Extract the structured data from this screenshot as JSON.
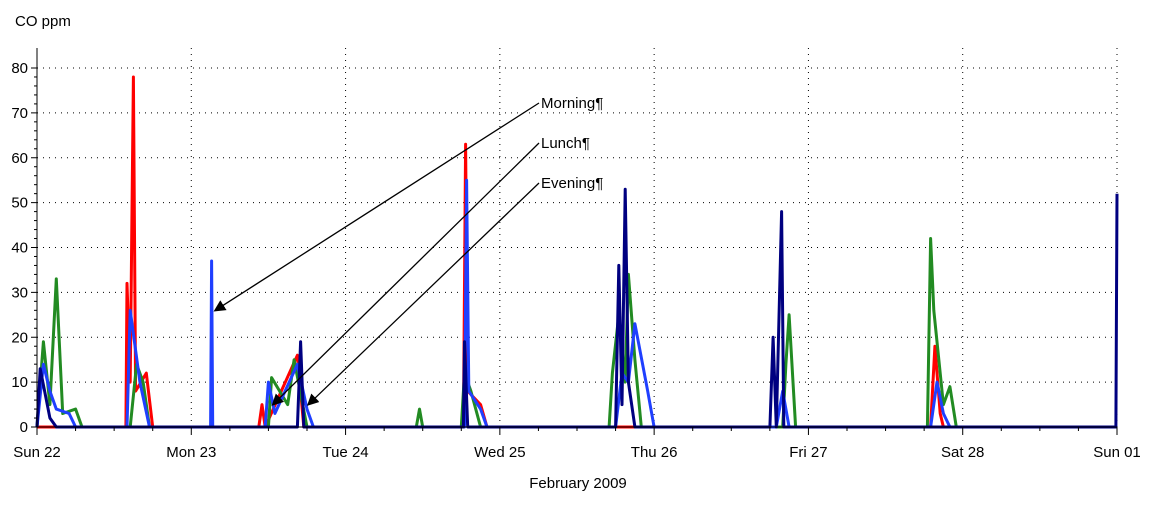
{
  "chart_data": {
    "type": "line",
    "title": "",
    "ylabel": "CO ppm",
    "xlabel": "February 2009",
    "ylim": [
      0,
      80
    ],
    "y_ticks": [
      0,
      10,
      20,
      30,
      40,
      50,
      60,
      70,
      80
    ],
    "x_range": [
      "2009-02-22T00:00",
      "2009-03-01T00:00"
    ],
    "x_ticks": [
      {
        "date": "2009-02-22T00:00",
        "label": "Sun 22"
      },
      {
        "date": "2009-02-23T00:00",
        "label": "Mon 23"
      },
      {
        "date": "2009-02-24T00:00",
        "label": "Tue 24"
      },
      {
        "date": "2009-02-25T00:00",
        "label": "Wed 25"
      },
      {
        "date": "2009-02-26T00:00",
        "label": "Thu 26"
      },
      {
        "date": "2009-02-27T00:00",
        "label": "Fri 27"
      },
      {
        "date": "2009-02-28T00:00",
        "label": "Sat 28"
      },
      {
        "date": "2009-03-01T00:00",
        "label": "Sun 01"
      }
    ],
    "grid": true,
    "series": [
      {
        "color": "#ff0000",
        "points": [
          [
            "2009-02-22T00:00",
            0
          ],
          [
            "2009-02-22T13:50",
            0
          ],
          [
            "2009-02-22T14:00",
            32
          ],
          [
            "2009-02-22T14:30",
            10
          ],
          [
            "2009-02-22T15:00",
            78
          ],
          [
            "2009-02-22T15:20",
            8
          ],
          [
            "2009-02-22T17:00",
            12
          ],
          [
            "2009-02-22T18:00",
            0
          ],
          [
            "2009-02-23T10:30",
            0
          ],
          [
            "2009-02-23T11:00",
            5
          ],
          [
            "2009-02-23T11:30",
            0
          ],
          [
            "2009-02-23T16:30",
            16
          ],
          [
            "2009-02-23T17:30",
            0
          ],
          [
            "2009-02-24T18:20",
            0
          ],
          [
            "2009-02-24T18:40",
            63
          ],
          [
            "2009-02-24T19:00",
            8
          ],
          [
            "2009-02-24T21:00",
            5
          ],
          [
            "2009-02-24T22:00",
            0
          ],
          [
            "2009-02-27T19:00",
            0
          ],
          [
            "2009-02-27T19:40",
            18
          ],
          [
            "2009-02-27T20:30",
            3
          ],
          [
            "2009-02-27T21:00",
            0
          ],
          [
            "2009-03-01T00:00",
            0
          ]
        ]
      },
      {
        "color": "#228b22",
        "points": [
          [
            "2009-02-22T00:00",
            0
          ],
          [
            "2009-02-22T01:00",
            19
          ],
          [
            "2009-02-22T02:00",
            5
          ],
          [
            "2009-02-22T03:00",
            33
          ],
          [
            "2009-02-22T04:00",
            3
          ],
          [
            "2009-02-22T06:00",
            4
          ],
          [
            "2009-02-22T07:00",
            0
          ],
          [
            "2009-02-22T14:30",
            0
          ],
          [
            "2009-02-22T15:30",
            14
          ],
          [
            "2009-02-22T16:30",
            10
          ],
          [
            "2009-02-22T17:30",
            0
          ],
          [
            "2009-02-23T12:00",
            0
          ],
          [
            "2009-02-23T12:30",
            11
          ],
          [
            "2009-02-23T15:00",
            5
          ],
          [
            "2009-02-23T16:00",
            15
          ],
          [
            "2009-02-23T18:00",
            0
          ],
          [
            "2009-02-24T11:00",
            0
          ],
          [
            "2009-02-24T11:30",
            4
          ],
          [
            "2009-02-24T12:00",
            0
          ],
          [
            "2009-02-24T18:00",
            0
          ],
          [
            "2009-02-24T18:30",
            12
          ],
          [
            "2009-02-24T19:30",
            8
          ],
          [
            "2009-02-24T21:00",
            0
          ],
          [
            "2009-02-25T17:00",
            0
          ],
          [
            "2009-02-25T17:30",
            12
          ],
          [
            "2009-02-25T18:30",
            25
          ],
          [
            "2009-02-25T19:30",
            10
          ],
          [
            "2009-02-25T20:00",
            34
          ],
          [
            "2009-02-25T21:00",
            15
          ],
          [
            "2009-02-25T22:00",
            0
          ],
          [
            "2009-02-26T20:00",
            0
          ],
          [
            "2009-02-26T20:30",
            14
          ],
          [
            "2009-02-26T21:00",
            25
          ],
          [
            "2009-02-26T22:00",
            0
          ],
          [
            "2009-02-27T18:30",
            0
          ],
          [
            "2009-02-27T19:00",
            42
          ],
          [
            "2009-02-27T19:30",
            26
          ],
          [
            "2009-02-27T21:00",
            5
          ],
          [
            "2009-02-27T22:00",
            9
          ],
          [
            "2009-02-27T23:00",
            0
          ],
          [
            "2009-03-01T00:00",
            0
          ]
        ]
      },
      {
        "color": "#1f3fff",
        "points": [
          [
            "2009-02-22T00:00",
            0
          ],
          [
            "2009-02-22T01:00",
            14
          ],
          [
            "2009-02-22T02:00",
            8
          ],
          [
            "2009-02-22T03:00",
            4
          ],
          [
            "2009-02-22T05:00",
            3
          ],
          [
            "2009-02-22T06:00",
            0
          ],
          [
            "2009-02-22T14:00",
            0
          ],
          [
            "2009-02-22T14:30",
            26
          ],
          [
            "2009-02-22T16:00",
            10
          ],
          [
            "2009-02-22T17:30",
            0
          ],
          [
            "2009-02-23T03:00",
            0
          ],
          [
            "2009-02-23T03:10",
            37
          ],
          [
            "2009-02-23T03:20",
            0
          ],
          [
            "2009-02-23T11:30",
            0
          ],
          [
            "2009-02-23T12:00",
            10
          ],
          [
            "2009-02-23T13:00",
            3
          ],
          [
            "2009-02-23T16:30",
            14
          ],
          [
            "2009-02-23T18:00",
            4
          ],
          [
            "2009-02-23T19:00",
            0
          ],
          [
            "2009-02-24T18:30",
            0
          ],
          [
            "2009-02-24T18:50",
            55
          ],
          [
            "2009-02-24T19:10",
            8
          ],
          [
            "2009-02-24T21:00",
            4
          ],
          [
            "2009-02-24T22:00",
            0
          ],
          [
            "2009-02-25T18:00",
            0
          ],
          [
            "2009-02-25T19:00",
            12
          ],
          [
            "2009-02-25T20:00",
            10
          ],
          [
            "2009-02-25T21:00",
            23
          ],
          [
            "2009-02-25T23:00",
            8
          ],
          [
            "2009-02-26T00:00",
            0
          ],
          [
            "2009-02-26T19:00",
            0
          ],
          [
            "2009-02-26T20:00",
            8
          ],
          [
            "2009-02-26T21:00",
            0
          ],
          [
            "2009-02-27T19:00",
            0
          ],
          [
            "2009-02-27T20:00",
            10
          ],
          [
            "2009-02-27T21:00",
            3
          ],
          [
            "2009-02-27T22:00",
            0
          ],
          [
            "2009-03-01T00:00",
            0
          ]
        ]
      },
      {
        "color": "#000080",
        "points": [
          [
            "2009-02-22T00:00",
            0
          ],
          [
            "2009-02-22T00:30",
            13
          ],
          [
            "2009-02-22T02:00",
            2
          ],
          [
            "2009-02-22T03:00",
            0
          ],
          [
            "2009-02-23T16:30",
            0
          ],
          [
            "2009-02-23T17:00",
            19
          ],
          [
            "2009-02-23T17:30",
            0
          ],
          [
            "2009-02-24T18:20",
            0
          ],
          [
            "2009-02-24T18:30",
            19
          ],
          [
            "2009-02-24T19:00",
            0
          ],
          [
            "2009-02-25T18:00",
            0
          ],
          [
            "2009-02-25T18:30",
            36
          ],
          [
            "2009-02-25T19:00",
            5
          ],
          [
            "2009-02-25T19:30",
            53
          ],
          [
            "2009-02-25T20:00",
            10
          ],
          [
            "2009-02-25T21:00",
            0
          ],
          [
            "2009-02-26T18:00",
            0
          ],
          [
            "2009-02-26T18:30",
            20
          ],
          [
            "2009-02-26T19:00",
            0
          ],
          [
            "2009-02-26T19:50",
            48
          ],
          [
            "2009-02-26T20:10",
            0
          ],
          [
            "2009-02-28T23:50",
            0
          ],
          [
            "2009-03-01T00:00",
            52
          ]
        ]
      }
    ],
    "annotations": [
      {
        "text": "Morning¶",
        "target": [
          "2009-02-23T03:00",
          25
        ]
      },
      {
        "text": "Lunch¶",
        "target": [
          "2009-02-23T12:00",
          4
        ]
      },
      {
        "text": "Evening¶",
        "target": [
          "2009-02-23T17:30",
          4
        ]
      }
    ]
  }
}
